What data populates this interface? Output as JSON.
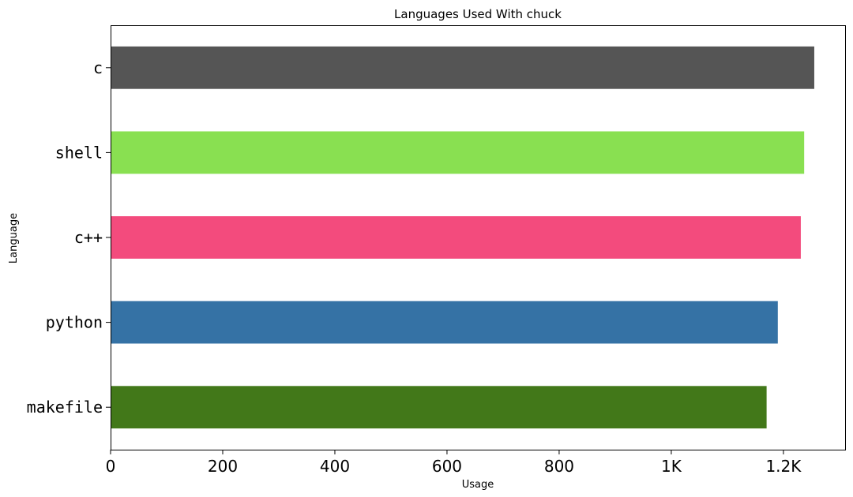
{
  "chart_data": {
    "type": "bar",
    "orientation": "horizontal",
    "title": "Languages Used With chuck",
    "xlabel": "Usage",
    "ylabel": "Language",
    "categories": [
      "c",
      "shell",
      "c++",
      "python",
      "makefile"
    ],
    "values": [
      1255,
      1237,
      1231,
      1190,
      1170
    ],
    "colors": [
      "#555555",
      "#89e051",
      "#f34b7d",
      "#3572a5",
      "#427819"
    ],
    "xlim": [
      0,
      1310
    ],
    "xticks": [
      0,
      200,
      400,
      600,
      800,
      1000,
      1200
    ],
    "xtick_labels": [
      "0",
      "200",
      "400",
      "600",
      "800",
      "1K",
      "1.2K"
    ],
    "grid": false,
    "legend": "none"
  }
}
